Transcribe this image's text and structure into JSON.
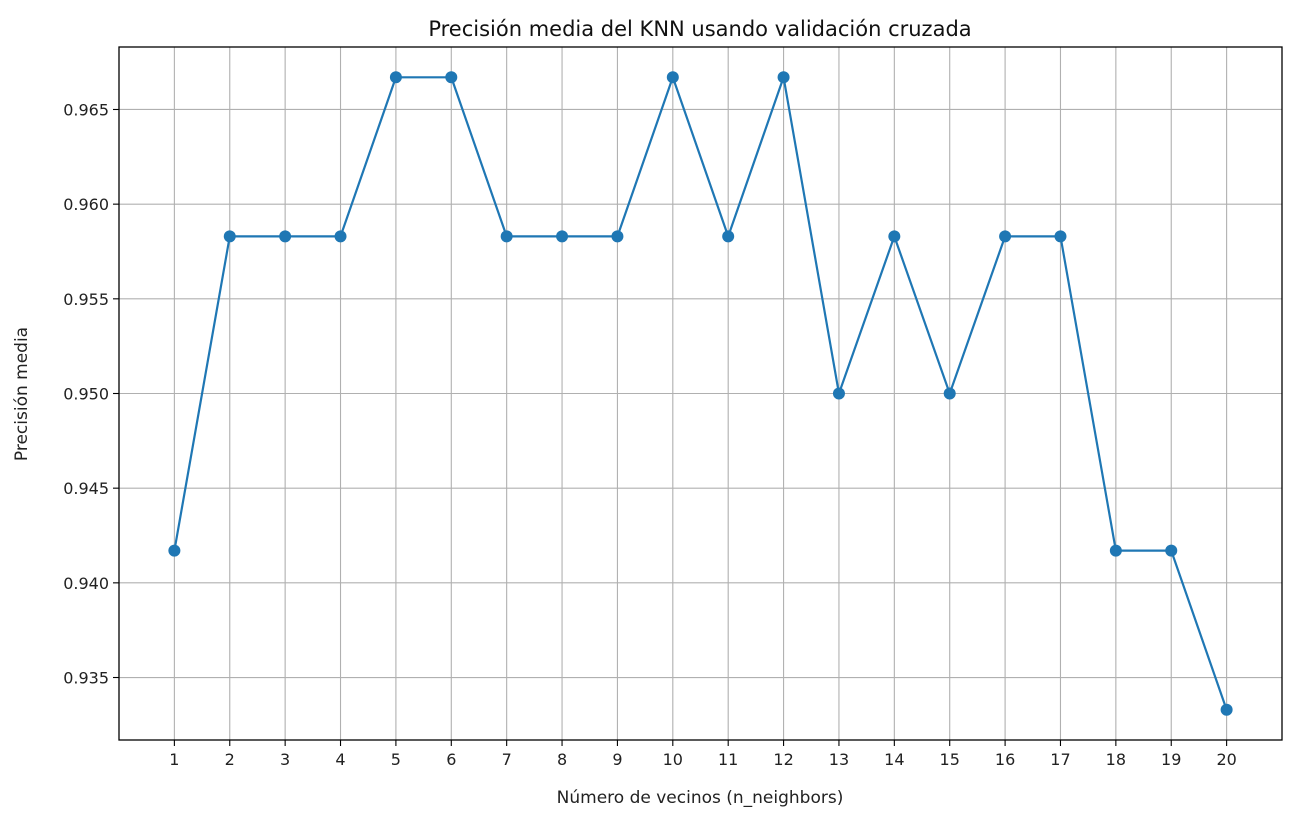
{
  "chart_data": {
    "type": "line",
    "title": "Precisión media del KNN usando validación cruzada",
    "xlabel": "Número de vecinos (n_neighbors)",
    "ylabel": "Precisión media",
    "x": [
      1,
      2,
      3,
      4,
      5,
      6,
      7,
      8,
      9,
      10,
      11,
      12,
      13,
      14,
      15,
      16,
      17,
      18,
      19,
      20
    ],
    "xtick_labels": [
      "1",
      "2",
      "3",
      "4",
      "5",
      "6",
      "7",
      "8",
      "9",
      "10",
      "11",
      "12",
      "13",
      "14",
      "15",
      "16",
      "17",
      "18",
      "19",
      "20"
    ],
    "series": [
      {
        "values": [
          0.9417,
          0.9583,
          0.9583,
          0.9583,
          0.9667,
          0.9667,
          0.9583,
          0.9583,
          0.9583,
          0.9667,
          0.9583,
          0.9667,
          0.95,
          0.9583,
          0.95,
          0.9583,
          0.9583,
          0.9417,
          0.9417,
          0.9333
        ],
        "marker": "circle",
        "color": "#1f77b4"
      }
    ],
    "yticks": [
      0.935,
      0.94,
      0.945,
      0.95,
      0.955,
      0.96,
      0.965
    ],
    "ytick_labels": [
      "0.935",
      "0.940",
      "0.945",
      "0.950",
      "0.955",
      "0.960",
      "0.965"
    ],
    "xlim": [
      0,
      21
    ],
    "ylim": [
      0.9317,
      0.9683
    ],
    "grid": true,
    "legend": false
  }
}
